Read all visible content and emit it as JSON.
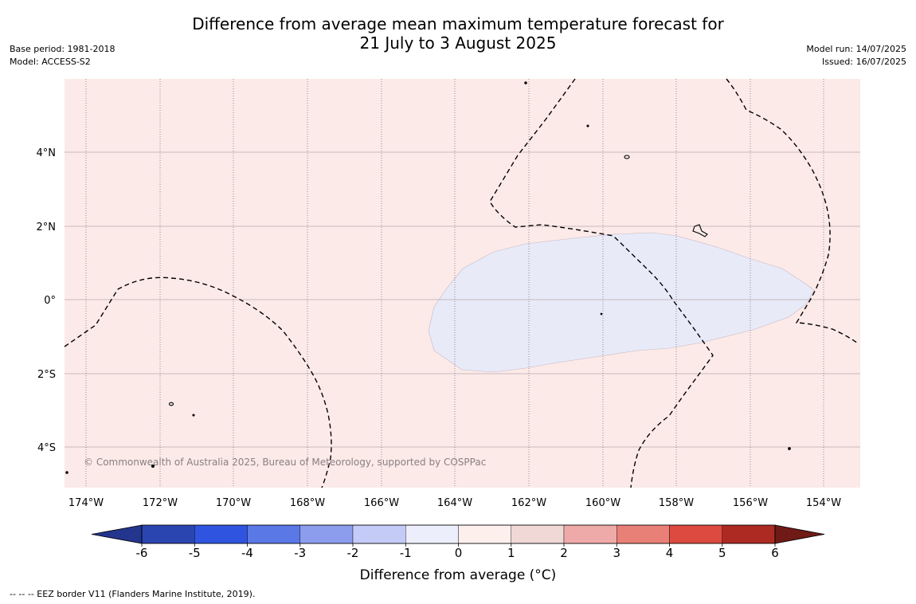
{
  "header": {
    "title": "Difference from average mean maximum temperature forecast for\n21 July to 3 August 2025",
    "base_period": "Base period: 1981-2018",
    "model": "Model: ACCESS-S2",
    "model_run": "Model run: 14/07/2025",
    "issued": "Issued: 16/07/2025"
  },
  "map": {
    "lat_labels": [
      "4°N",
      "2°N",
      "0°",
      "2°S",
      "4°S"
    ],
    "lon_labels": [
      "174°W",
      "172°W",
      "170°W",
      "168°W",
      "166°W",
      "164°W",
      "162°W",
      "160°W",
      "158°W",
      "156°W",
      "154°W"
    ],
    "copyright": "© Commonwealth of Australia 2025, Bureau of Meteorology, supported by COSPPac",
    "background_anomaly_color": "#fbeae8",
    "cool_region_color": "#e8eaf8"
  },
  "colorbar": {
    "title": "Difference from average (°C)",
    "ticks": [
      "-6",
      "-5",
      "-4",
      "-3",
      "-2",
      "-1",
      "0",
      "1",
      "2",
      "3",
      "4",
      "5",
      "6"
    ],
    "colors": [
      "#23358c",
      "#2b45b0",
      "#2f55e0",
      "#5a78e6",
      "#8c9ded",
      "#c5cbf7",
      "#eceefb",
      "#fdefec",
      "#efd8d6",
      "#eeaaa8",
      "#e98078",
      "#dd4a40",
      "#ad2a22",
      "#6f1a16"
    ]
  },
  "footer": {
    "eez_legend": "--  --  -- EEZ border V11 (Flanders Marine Institute, 2019)."
  }
}
